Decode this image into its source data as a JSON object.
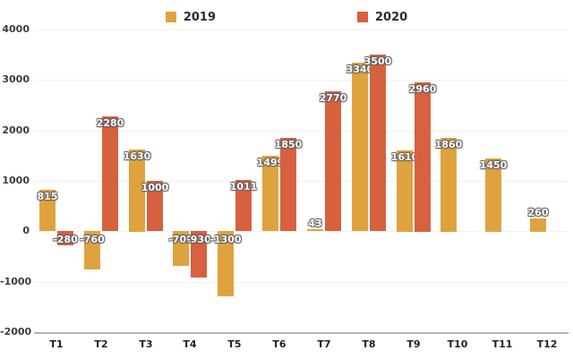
{
  "legend": {
    "items": [
      {
        "label": "2019",
        "color": "#dea33e"
      },
      {
        "label": "2020",
        "color": "#d7613e"
      }
    ]
  },
  "chart_data": {
    "type": "bar",
    "title": "",
    "xlabel": "",
    "ylabel": "",
    "categories": [
      "T1",
      "T2",
      "T3",
      "T4",
      "T5",
      "T6",
      "T7",
      "T8",
      "T9",
      "T10",
      "T11",
      "T12"
    ],
    "series": [
      {
        "name": "2019",
        "color": "#dea33e",
        "values": [
          815,
          -760,
          1630,
          -700,
          -1300,
          1499,
          43,
          3340,
          1610,
          1860,
          1450,
          260
        ]
      },
      {
        "name": "2020",
        "color": "#d7613e",
        "values": [
          -280,
          2280,
          1000,
          -930,
          1011,
          1850,
          2770,
          3500,
          2960,
          null,
          null,
          null
        ]
      }
    ],
    "ylim": [
      -2000,
      4000
    ],
    "yticks": [
      4000,
      3000,
      2000,
      1000,
      0,
      -1000,
      -2000
    ],
    "grid": true,
    "legend_position": "top",
    "data_labels": true
  }
}
